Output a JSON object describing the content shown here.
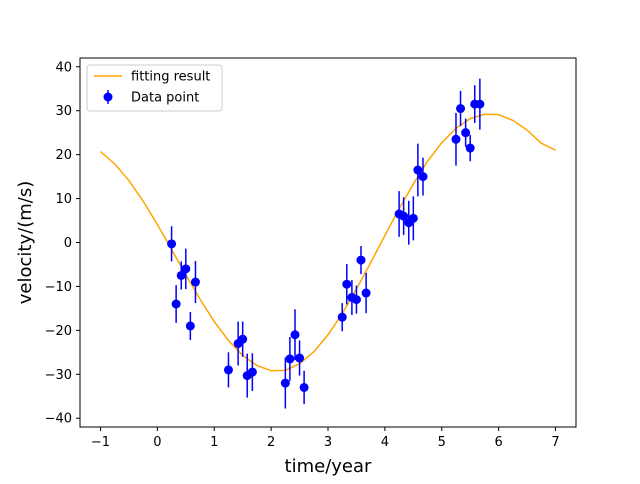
{
  "chart_data": {
    "type": "scatter",
    "title": "",
    "xlabel": "time/year",
    "ylabel": "velocity/(m/s)",
    "xlim": [
      -1.36,
      7.36
    ],
    "ylim": [
      -42,
      42
    ],
    "xticks": [
      -1,
      0,
      1,
      2,
      3,
      4,
      5,
      6,
      7
    ],
    "yticks": [
      -40,
      -30,
      -20,
      -10,
      0,
      10,
      20,
      30,
      40
    ],
    "grid": false,
    "legend": {
      "placement": "top-left",
      "entries": [
        {
          "label": "fitting result",
          "kind": "line",
          "color": "#ffa500"
        },
        {
          "label": "Data point",
          "kind": "errorbar",
          "color": "#0000ff"
        }
      ]
    },
    "series": [
      {
        "name": "Data point",
        "kind": "errorbar",
        "color": "#0000ff",
        "points": [
          {
            "x": 0.25,
            "y": -0.3,
            "err": 4.0
          },
          {
            "x": 0.33,
            "y": -14.0,
            "err": 4.3
          },
          {
            "x": 0.42,
            "y": -7.5,
            "err": 3.2
          },
          {
            "x": 0.5,
            "y": -6.0,
            "err": 4.6
          },
          {
            "x": 0.58,
            "y": -19.0,
            "err": 3.2
          },
          {
            "x": 0.67,
            "y": -9.0,
            "err": 4.8
          },
          {
            "x": 1.25,
            "y": -29.0,
            "err": 4.0
          },
          {
            "x": 1.42,
            "y": -23.0,
            "err": 5.0
          },
          {
            "x": 1.5,
            "y": -22.0,
            "err": 4.0
          },
          {
            "x": 1.58,
            "y": -30.3,
            "err": 5.0
          },
          {
            "x": 1.67,
            "y": -29.5,
            "err": 4.3
          },
          {
            "x": 2.25,
            "y": -32.0,
            "err": 5.8
          },
          {
            "x": 2.33,
            "y": -26.5,
            "err": 5.0
          },
          {
            "x": 2.42,
            "y": -21.0,
            "err": 5.8
          },
          {
            "x": 2.5,
            "y": -26.3,
            "err": 4.0
          },
          {
            "x": 2.58,
            "y": -33.0,
            "err": 3.8
          },
          {
            "x": 3.25,
            "y": -17.0,
            "err": 3.2
          },
          {
            "x": 3.33,
            "y": -9.5,
            "err": 4.6
          },
          {
            "x": 3.42,
            "y": -12.5,
            "err": 4.0
          },
          {
            "x": 3.5,
            "y": -13.0,
            "err": 3.2
          },
          {
            "x": 3.58,
            "y": -4.0,
            "err": 3.2
          },
          {
            "x": 3.67,
            "y": -11.5,
            "err": 4.6
          },
          {
            "x": 4.25,
            "y": 6.5,
            "err": 5.2
          },
          {
            "x": 4.33,
            "y": 6.0,
            "err": 4.3
          },
          {
            "x": 4.42,
            "y": 4.5,
            "err": 5.0
          },
          {
            "x": 4.5,
            "y": 5.5,
            "err": 5.0
          },
          {
            "x": 4.58,
            "y": 16.5,
            "err": 6.0
          },
          {
            "x": 4.67,
            "y": 15.0,
            "err": 4.3
          },
          {
            "x": 5.25,
            "y": 23.5,
            "err": 6.0
          },
          {
            "x": 5.33,
            "y": 30.5,
            "err": 4.0
          },
          {
            "x": 5.42,
            "y": 25.0,
            "err": 3.2
          },
          {
            "x": 5.5,
            "y": 21.5,
            "err": 3.0
          },
          {
            "x": 5.58,
            "y": 31.5,
            "err": 4.3
          },
          {
            "x": 5.67,
            "y": 31.5,
            "err": 5.8
          }
        ]
      },
      {
        "name": "fitting result",
        "kind": "line",
        "color": "#ffa500",
        "x": [
          -1.0,
          -0.75,
          -0.5,
          -0.25,
          0.0,
          0.25,
          0.5,
          0.75,
          1.0,
          1.25,
          1.5,
          1.75,
          2.0,
          2.25,
          2.5,
          2.75,
          3.0,
          3.25,
          3.5,
          3.75,
          4.0,
          4.25,
          4.5,
          4.75,
          5.0,
          5.25,
          5.5,
          5.75,
          6.0,
          6.25,
          6.5,
          6.75,
          7.0
        ],
        "y": [
          20.7,
          17.9,
          14.1,
          9.4,
          4.1,
          -1.6,
          -7.4,
          -12.9,
          -18.0,
          -22.3,
          -25.7,
          -28.0,
          -29.2,
          -29.1,
          -27.6,
          -24.9,
          -21.0,
          -16.2,
          -10.6,
          -4.6,
          1.6,
          7.7,
          13.3,
          18.5,
          22.7,
          26.0,
          28.2,
          29.2,
          29.1,
          27.8,
          25.6,
          22.6,
          21.0
        ]
      }
    ]
  }
}
